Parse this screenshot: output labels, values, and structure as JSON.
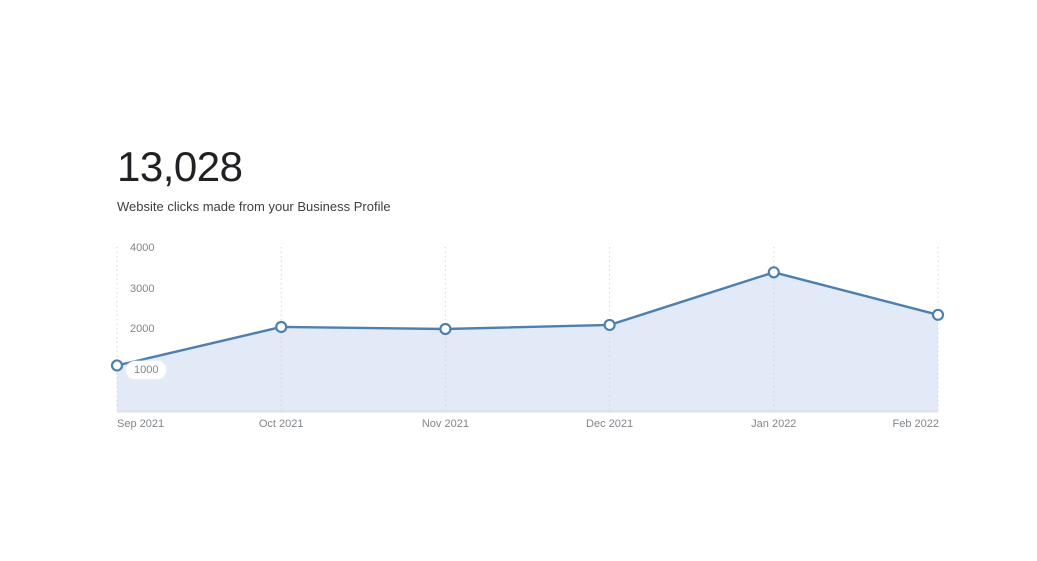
{
  "page": {
    "background": "#ffffff"
  },
  "metric": {
    "value": "13,028",
    "description": "Website clicks made from your Business Profile"
  },
  "chart_data": {
    "type": "area",
    "title": "13,028",
    "subtitle": "Website clicks made from your Business Profile",
    "categories": [
      "Sep 2021",
      "Oct 2021",
      "Nov 2021",
      "Dec 2021",
      "Jan 2022",
      "Feb 2022"
    ],
    "series": [
      {
        "name": "Website clicks",
        "values": [
          1100,
          2050,
          2000,
          2100,
          3400,
          2350
        ]
      }
    ],
    "xlabel": "",
    "ylabel": "",
    "ylim": [
      0,
      4000
    ],
    "yticks": [
      1000,
      2000,
      3000,
      4000
    ],
    "legend": "none",
    "grid": {
      "vertical": "dotted",
      "horizontal": "none"
    },
    "markers": "circle-open",
    "colors": {
      "line": "#4d80ae",
      "area_fill": "#e2eaf8",
      "marker_fill": "#ffffff",
      "marker_stroke": "#4d80ae",
      "gridline": "#ccd2da",
      "baseline": "#dde0e4",
      "axis_label": "#80868b",
      "metric_value": "#202124",
      "metric_description": "#3c4043"
    }
  }
}
